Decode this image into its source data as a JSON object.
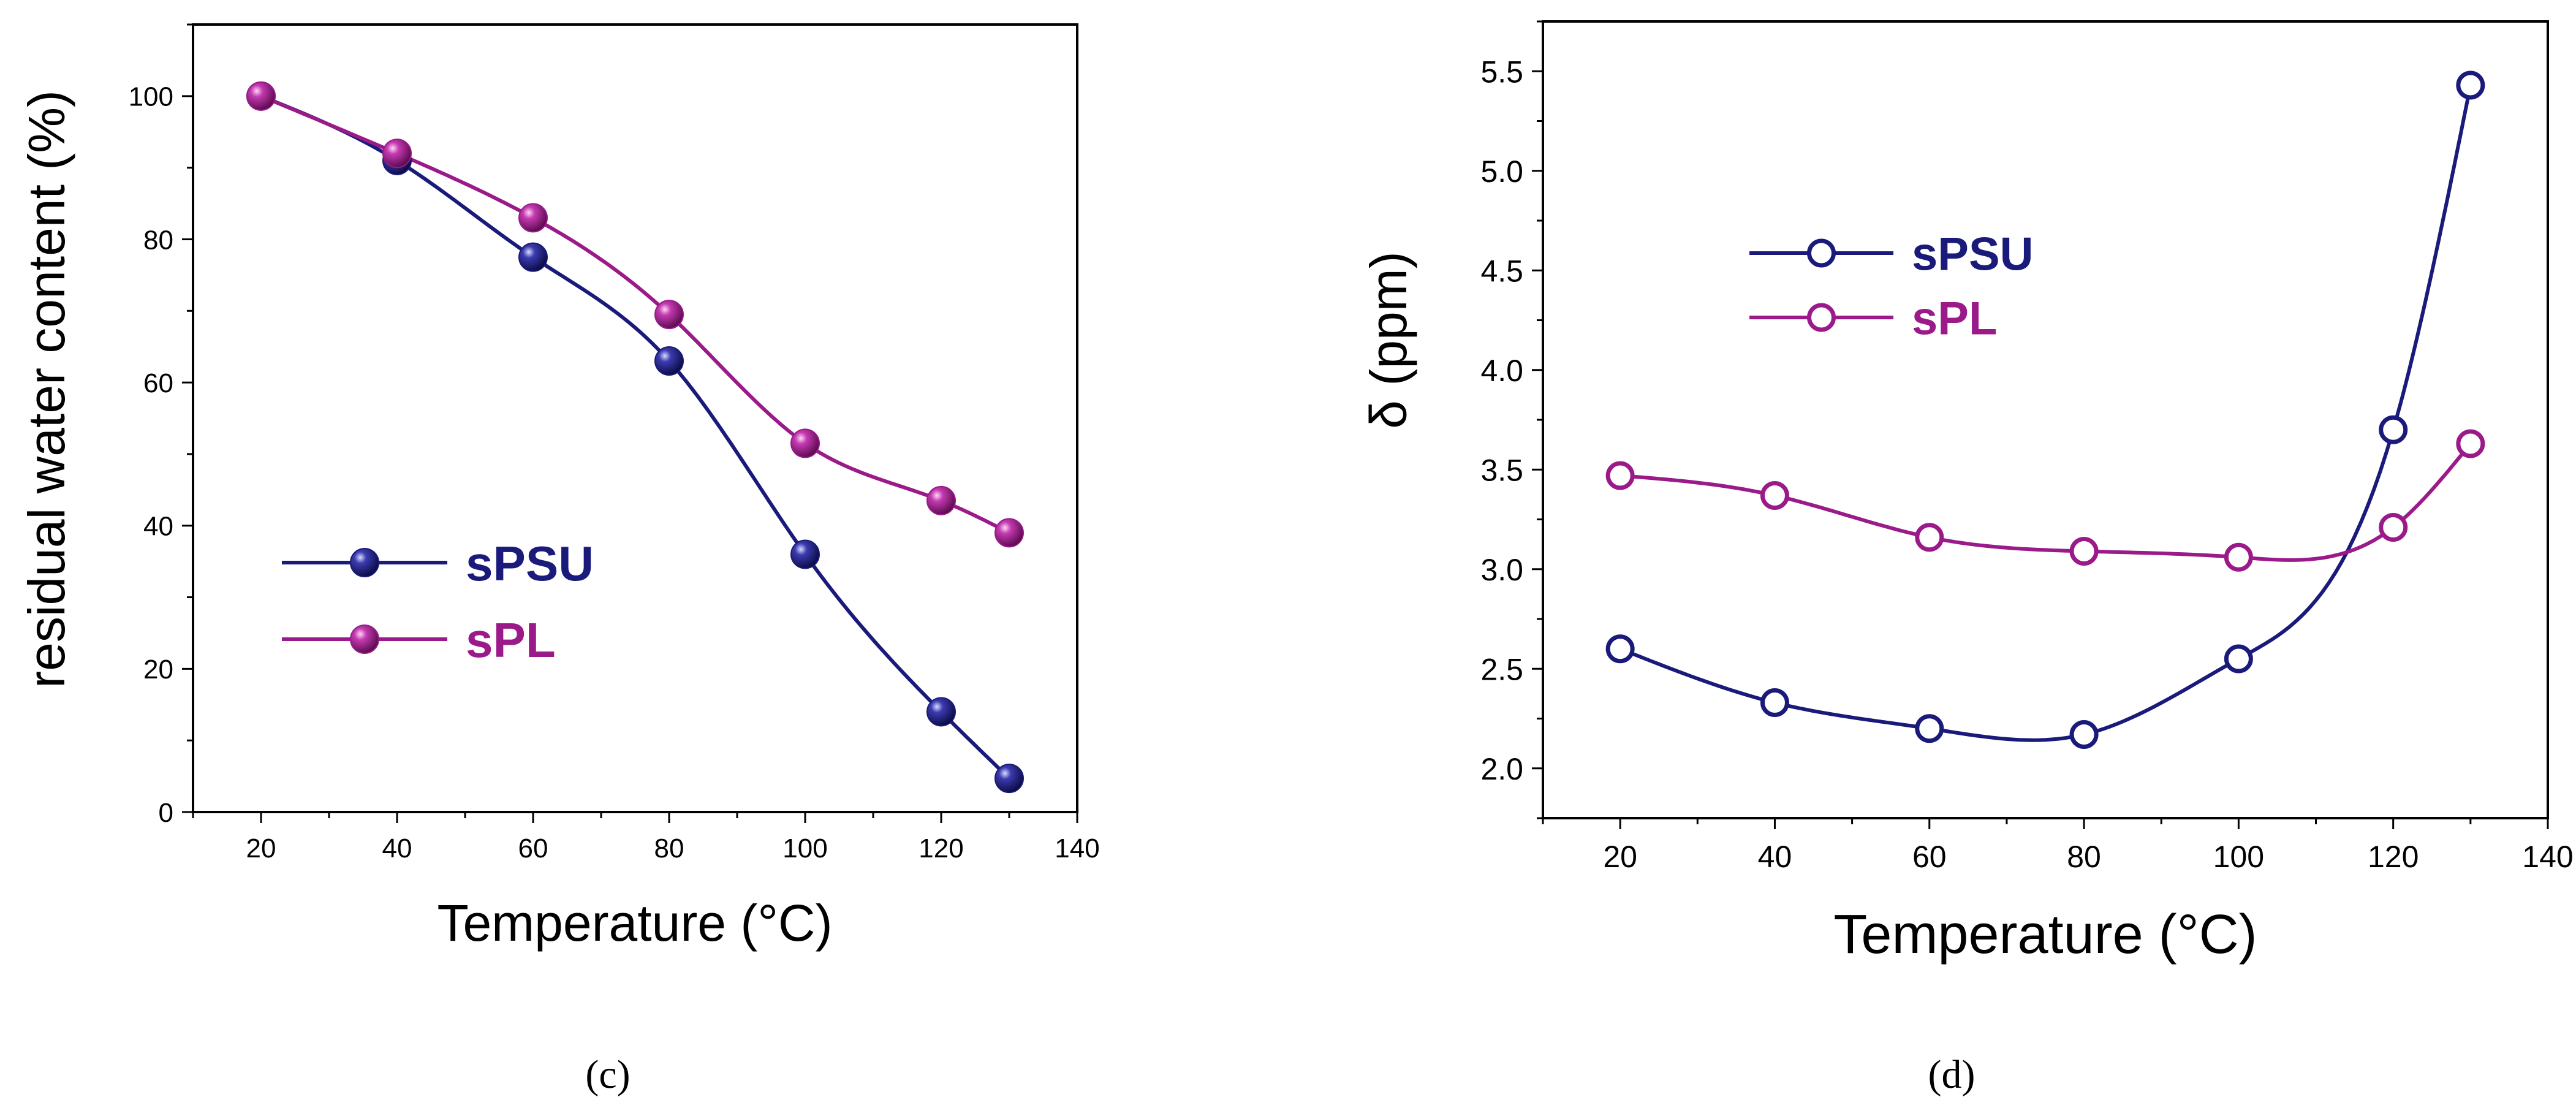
{
  "chart_data": [
    {
      "panel_label": "(c)",
      "type": "line",
      "title": "",
      "xlabel": "Temperature (°C)",
      "ylabel": "residual water content (%)",
      "xlim": [
        10,
        140
      ],
      "ylim": [
        0,
        110
      ],
      "xticks": [
        20,
        40,
        60,
        80,
        100,
        120,
        140
      ],
      "yticks": [
        0,
        20,
        40,
        60,
        80,
        100
      ],
      "grid": false,
      "legend_position": "lower-left",
      "marker": "filled-sphere",
      "x": [
        20,
        40,
        60,
        80,
        100,
        120,
        130
      ],
      "series": [
        {
          "name": "sPSU",
          "color": "#1a1a7a",
          "values": [
            100,
            91,
            77.5,
            63,
            36,
            14,
            4.7
          ]
        },
        {
          "name": "sPL",
          "color": "#9b1a8a",
          "values": [
            100,
            92,
            83,
            69.5,
            51.5,
            43.5,
            39
          ]
        }
      ]
    },
    {
      "panel_label": "(d)",
      "type": "line",
      "title": "",
      "xlabel": "Temperature (°C)",
      "ylabel": "δ (ppm)",
      "xlim": [
        10,
        140
      ],
      "ylim": [
        1.75,
        5.75
      ],
      "xticks": [
        20,
        40,
        60,
        80,
        100,
        120,
        140
      ],
      "yticks": [
        2.0,
        2.5,
        3.0,
        3.5,
        4.0,
        4.5,
        5.0,
        5.5
      ],
      "grid": false,
      "legend_position": "upper-left",
      "marker": "open-circle",
      "x": [
        20,
        40,
        60,
        80,
        100,
        120,
        130
      ],
      "series": [
        {
          "name": "sPSU",
          "color": "#1a1a7a",
          "values": [
            2.6,
            2.33,
            2.2,
            2.17,
            2.55,
            3.7,
            5.43
          ]
        },
        {
          "name": "sPL",
          "color": "#9b1a8a",
          "values": [
            3.47,
            3.37,
            3.16,
            3.09,
            3.06,
            3.21,
            3.63
          ]
        }
      ]
    }
  ]
}
